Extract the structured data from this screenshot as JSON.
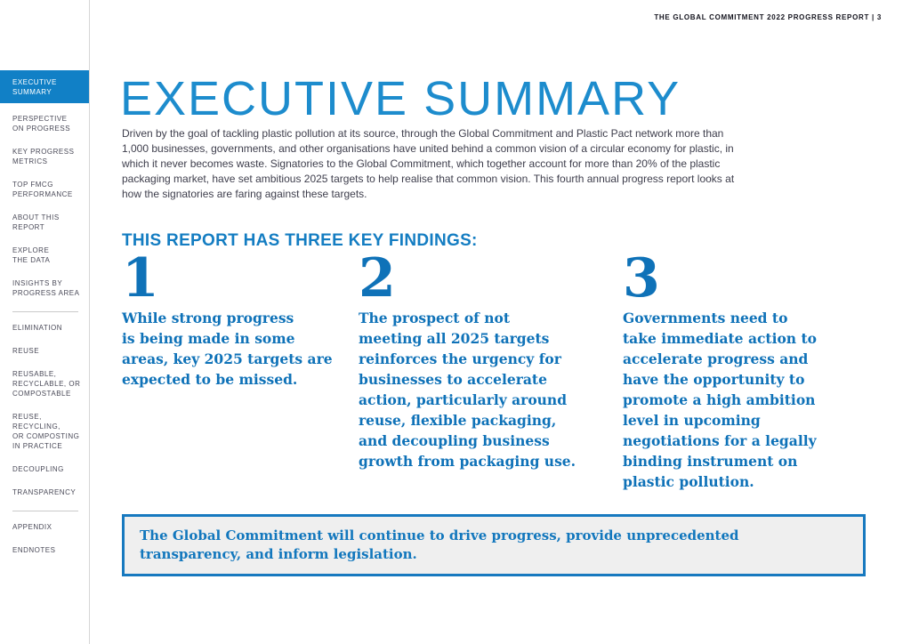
{
  "header": {
    "text": "THE GLOBAL COMMITMENT 2022 PROGRESS REPORT  |  3"
  },
  "sidebar": {
    "items": [
      {
        "label": "EXECUTIVE\nSUMMARY",
        "active": true
      },
      {
        "label": "PERSPECTIVE\nON PROGRESS"
      },
      {
        "label": "KEY PROGRESS\nMETRICS"
      },
      {
        "label": "TOP FMCG\nPERFORMANCE"
      },
      {
        "label": "ABOUT THIS\nREPORT"
      },
      {
        "label": "EXPLORE\nTHE DATA"
      },
      {
        "label": "INSIGHTS BY\nPROGRESS AREA"
      },
      {
        "divider": true
      },
      {
        "label": "ELIMINATION"
      },
      {
        "label": "REUSE"
      },
      {
        "label": "REUSABLE,\nRECYCLABLE, OR\nCOMPOSTABLE"
      },
      {
        "label": "REUSE,\nRECYCLING,\nOR COMPOSTING\nIN PRACTICE"
      },
      {
        "label": "DECOUPLING"
      },
      {
        "label": "TRANSPARENCY"
      },
      {
        "divider": true
      },
      {
        "label": "APPENDIX"
      },
      {
        "label": "ENDNOTES"
      }
    ]
  },
  "main": {
    "title": "EXECUTIVE SUMMARY",
    "intro": "Driven by the goal of tackling plastic pollution at its source, through the Global Commitment and Plastic Pact network more than 1,000 businesses, governments, and other organisations have united behind a common vision of a circular economy for plastic, in which it never becomes waste. Signatories to the Global Commitment, which together account for more than 20% of the plastic packaging market, have set ambitious 2025 targets to help realise that common vision. This fourth annual progress report looks at how the signatories are faring against these targets.",
    "findings_heading": "THIS REPORT HAS THREE KEY FINDINGS:",
    "findings": [
      {
        "number": "1",
        "text": "While strong progress\nis being made in some\nareas, key 2025 targets are\nexpected to be missed."
      },
      {
        "number": "2",
        "text": "The prospect of not\nmeeting all 2025 targets\nreinforces the urgency for\nbusinesses to accelerate\naction, particularly around\nreuse, flexible packaging,\nand decoupling business\ngrowth from packaging use."
      },
      {
        "number": "3",
        "text": "Governments need to\ntake immediate action to\naccelerate progress and\nhave the opportunity to\npromote a high ambition\nlevel in upcoming\nnegotiations for a legally\nbinding instrument on\nplastic pollution."
      }
    ],
    "callout": "The Global Commitment will continue to drive progress, provide unprecedented\ntransparency, and inform legislation."
  },
  "colors": {
    "active_nav_bg": "#1180c6",
    "title_blue": "#1d8ccd",
    "heading_blue": "#147dc2",
    "findings_blue": "#0f72b8",
    "callout_border": "#1779bf",
    "callout_bg": "#efefef",
    "body_text": "#3e3e4c",
    "sidebar_text": "#4a4a58"
  }
}
